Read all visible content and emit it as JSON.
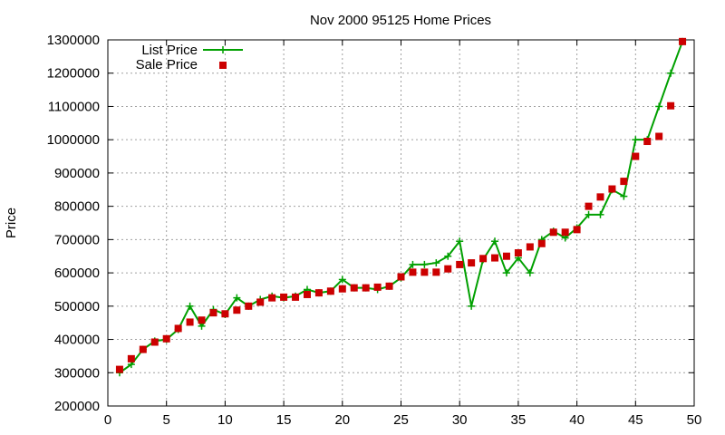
{
  "chart_data": {
    "type": "line",
    "title": "Nov 2000 95125 Home Prices",
    "xlabel": "",
    "ylabel": "Price",
    "xlim": [
      0,
      50
    ],
    "ylim": [
      200000,
      1300000
    ],
    "xticks": [
      0,
      5,
      10,
      15,
      20,
      25,
      30,
      35,
      40,
      45,
      50
    ],
    "yticks": [
      200000,
      300000,
      400000,
      500000,
      600000,
      700000,
      800000,
      900000,
      1000000,
      1100000,
      1200000,
      1300000
    ],
    "grid": true,
    "legend_position": "top-left",
    "series": [
      {
        "name": "List Price",
        "style": "line-with-plus-markers",
        "color": "#00a000",
        "x": [
          1,
          2,
          3,
          4,
          5,
          6,
          7,
          8,
          9,
          10,
          11,
          12,
          13,
          14,
          15,
          16,
          17,
          18,
          19,
          20,
          21,
          22,
          23,
          24,
          25,
          26,
          27,
          28,
          29,
          30,
          31,
          32,
          33,
          34,
          35,
          36,
          37,
          38,
          39,
          40,
          41,
          42,
          43,
          44,
          45,
          46,
          47,
          48,
          49
        ],
        "values": [
          300000,
          325000,
          370000,
          395000,
          400000,
          430000,
          500000,
          440000,
          490000,
          475000,
          525000,
          500000,
          520000,
          530000,
          525000,
          530000,
          550000,
          540000,
          545000,
          580000,
          555000,
          555000,
          550000,
          560000,
          585000,
          625000,
          625000,
          630000,
          650000,
          695000,
          500000,
          640000,
          695000,
          600000,
          645000,
          600000,
          700000,
          725000,
          705000,
          735000,
          775000,
          775000,
          850000,
          830000,
          1000000,
          1000000,
          1100000,
          1200000,
          1295000
        ]
      },
      {
        "name": "Sale Price",
        "style": "square-markers",
        "color": "#cc0000",
        "x": [
          1,
          2,
          3,
          4,
          5,
          6,
          7,
          8,
          9,
          10,
          11,
          12,
          13,
          14,
          15,
          16,
          17,
          18,
          19,
          20,
          21,
          22,
          23,
          24,
          25,
          26,
          27,
          28,
          29,
          30,
          31,
          32,
          33,
          34,
          35,
          36,
          37,
          38,
          39,
          40,
          41,
          42,
          43,
          44,
          45,
          46,
          47,
          48,
          49
        ],
        "values": [
          310000,
          342000,
          370000,
          392000,
          402000,
          433000,
          452000,
          458000,
          480000,
          477000,
          488000,
          500000,
          512000,
          525000,
          527000,
          527000,
          535000,
          540000,
          545000,
          552000,
          555000,
          555000,
          557000,
          560000,
          588000,
          602000,
          602000,
          602000,
          612000,
          625000,
          630000,
          643000,
          645000,
          650000,
          660000,
          678000,
          688000,
          722000,
          722000,
          730000,
          800000,
          828000,
          852000,
          875000,
          950000,
          995000,
          1010000,
          1102000,
          1295000
        ]
      }
    ]
  }
}
